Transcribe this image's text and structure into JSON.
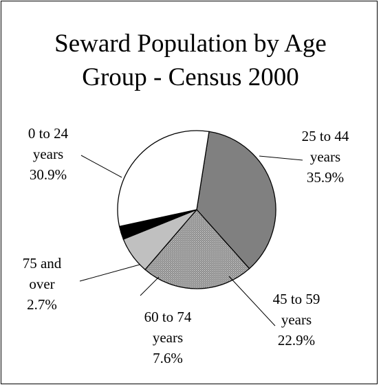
{
  "chart_data": {
    "type": "pie",
    "title": "Seward Population by Age Group - Census 2000",
    "title_lines": [
      "Seward Population by Age",
      "Group - Census 2000"
    ],
    "slices": [
      {
        "label_lines": [
          "25 to 44",
          "years",
          "35.9%"
        ],
        "label": "25 to 44 years",
        "value": 35.9,
        "value_label": "35.9%",
        "color": "#808080",
        "pattern": "solid"
      },
      {
        "label_lines": [
          "45 to 59",
          "years",
          "22.9%"
        ],
        "label": "45 to 59 years",
        "value": 22.9,
        "value_label": "22.9%",
        "color": "#8c8c8c",
        "pattern": "dots"
      },
      {
        "label_lines": [
          "60 to 74",
          "years",
          "7.6%"
        ],
        "label": "60 to 74 years",
        "value": 7.6,
        "value_label": "7.6%",
        "color": "#c0c0c0",
        "pattern": "solid"
      },
      {
        "label_lines": [
          "75 and",
          "over",
          "2.7%"
        ],
        "label": "75 and over",
        "value": 2.7,
        "value_label": "2.7%",
        "color": "#000000",
        "pattern": "solid"
      },
      {
        "label_lines": [
          "0 to 24",
          "years",
          "30.9%"
        ],
        "label": "0 to 24 years",
        "value": 30.9,
        "value_label": "30.9%",
        "color": "#ffffff",
        "pattern": "solid"
      }
    ],
    "legend": "none",
    "leader_lines": true
  }
}
